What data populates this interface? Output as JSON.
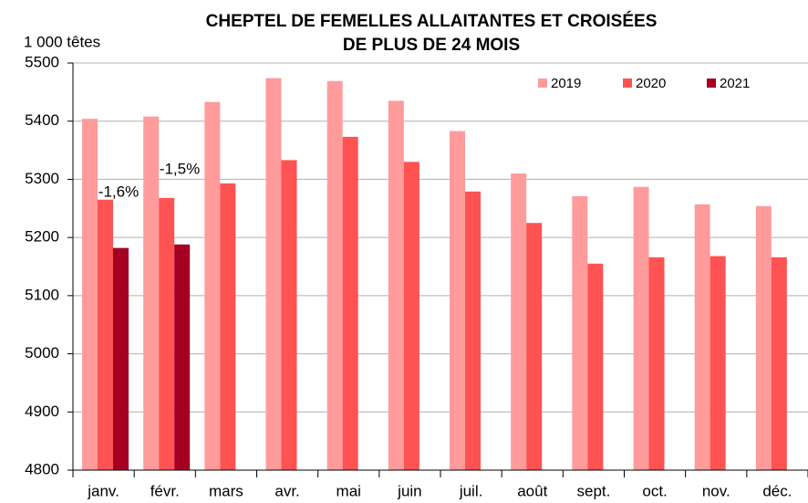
{
  "chart_data": {
    "type": "bar",
    "title": [
      "CHEPTEL DE FEMELLES ALLAITANTES ET CROISÉES",
      "DE PLUS DE 24 MOIS"
    ],
    "y_label": "1 000 têtes",
    "categories": [
      "janv.",
      "févr.",
      "mars",
      "avr.",
      "mai",
      "juin",
      "juil.",
      "août",
      "sept.",
      "oct.",
      "nov.",
      "déc."
    ],
    "series": [
      {
        "name": "2019",
        "color": "#ff9b9b",
        "values": [
          5404,
          5408,
          5433,
          5474,
          5469,
          5435,
          5383,
          5310,
          5271,
          5287,
          5257,
          5254
        ]
      },
      {
        "name": "2020",
        "color": "#ff5252",
        "values": [
          5265,
          5268,
          5293,
          5333,
          5373,
          5330,
          5279,
          5225,
          5155,
          5166,
          5168,
          5166
        ]
      },
      {
        "name": "2021",
        "color": "#a50021",
        "values": [
          5182,
          5188,
          null,
          null,
          null,
          null,
          null,
          null,
          null,
          null,
          null,
          null
        ]
      }
    ],
    "annotations": [
      "-1,6%",
      "-1,5%"
    ],
    "ylim": [
      4800,
      5500
    ],
    "yticks": [
      4800,
      4900,
      5000,
      5100,
      5200,
      5300,
      5400,
      5500
    ],
    "grid": true,
    "legend": "top-right"
  }
}
